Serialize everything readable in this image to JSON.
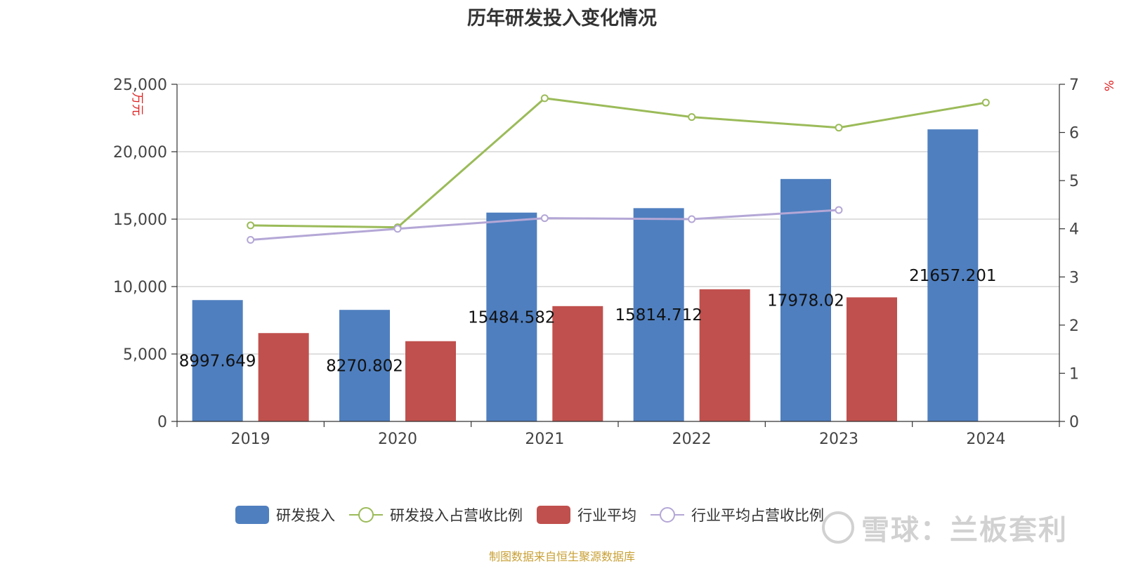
{
  "chart_data": {
    "type": "bar",
    "title": "历年研发投入变化情况",
    "categories": [
      "2019",
      "2020",
      "2021",
      "2022",
      "2023",
      "2024"
    ],
    "y_left": {
      "label": "万元",
      "ylim": [
        0,
        25000
      ],
      "ticks": [
        "0",
        "5,000",
        "10,000",
        "15,000",
        "20,000",
        "25,000"
      ]
    },
    "y_right": {
      "label": "%",
      "ylim": [
        0,
        7
      ],
      "ticks": [
        "0",
        "1",
        "2",
        "3",
        "4",
        "5",
        "6",
        "7"
      ]
    },
    "series": [
      {
        "name": "研发投入",
        "kind": "bar",
        "axis": "left",
        "color": "#4f7fbf",
        "values": [
          8997.649,
          8270.802,
          15484.582,
          15814.712,
          17978.02,
          21657.201
        ],
        "labels": [
          "8997.649",
          "8270.802",
          "15484.582",
          "15814.712",
          "17978.02",
          "21657.201"
        ]
      },
      {
        "name": "研发投入占营收比例",
        "kind": "line",
        "axis": "right",
        "color": "#9bbb59",
        "values": [
          4.07,
          4.03,
          6.71,
          6.32,
          6.1,
          6.62
        ]
      },
      {
        "name": "行业平均",
        "kind": "bar",
        "axis": "left",
        "color": "#c0504d",
        "values": [
          6550,
          5950,
          8550,
          9800,
          9200,
          null
        ]
      },
      {
        "name": "行业平均占营收比例",
        "kind": "line",
        "axis": "right",
        "color": "#b4a7d6",
        "values": [
          3.77,
          4.0,
          4.22,
          4.2,
          4.39,
          null
        ]
      }
    ],
    "grid": true,
    "legend_position": "bottom"
  },
  "source_text": "制图数据来自恒生聚源数据库",
  "watermark_text": "雪球：兰板套利"
}
